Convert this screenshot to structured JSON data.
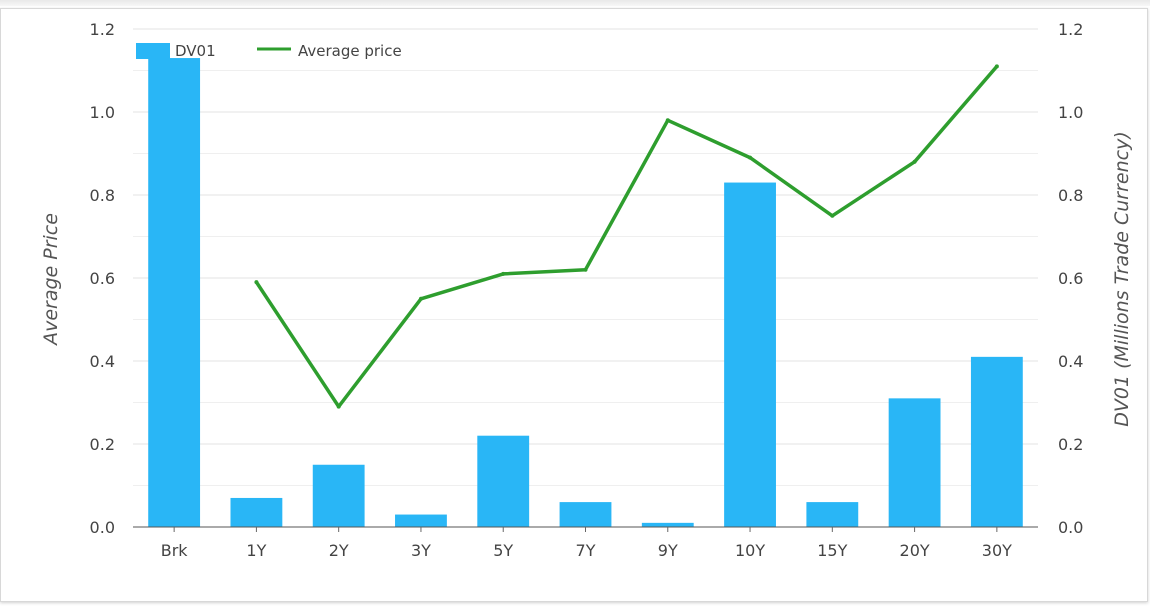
{
  "chart_data": {
    "type": "bar",
    "categories": [
      "Brk",
      "1Y",
      "2Y",
      "3Y",
      "5Y",
      "7Y",
      "9Y",
      "10Y",
      "15Y",
      "20Y",
      "30Y"
    ],
    "series": [
      {
        "name": "DV01",
        "kind": "bar",
        "axis": "right",
        "color": "#29b6f6",
        "values": [
          1.13,
          0.07,
          0.15,
          0.03,
          0.22,
          0.06,
          0.01,
          0.83,
          0.06,
          0.31,
          0.41
        ]
      },
      {
        "name": "Average price",
        "kind": "line",
        "axis": "left",
        "color": "#2e9e2e",
        "values": [
          null,
          0.59,
          0.29,
          0.55,
          0.61,
          0.62,
          0.98,
          0.89,
          0.75,
          0.88,
          1.11
        ]
      }
    ],
    "ylabel_left": "Average Price",
    "ylabel_right": "DV01 (Millions Trade Currency)",
    "ylim": [
      0,
      1.2
    ],
    "yticks": [
      "0.0",
      "0.2",
      "0.4",
      "0.6",
      "0.8",
      "1.0",
      "1.2"
    ],
    "grid": true,
    "legend_position": "top-left"
  }
}
